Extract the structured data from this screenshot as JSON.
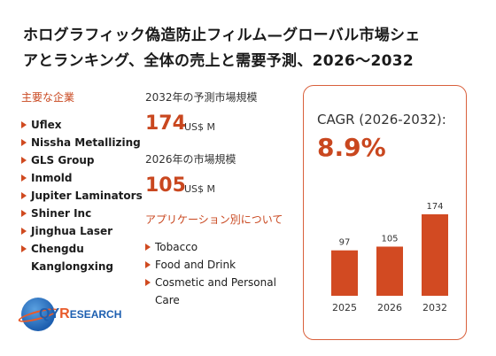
{
  "title": {
    "line1": "ホログラフィック偽造防止フィルム—グローバル市場シェ",
    "line2": "アとランキング、全体の売上と需要予測、2026〜2032"
  },
  "companies_label": "主要な企業",
  "companies": [
    "Uflex",
    "Nissha Metallizing",
    "GLS Group",
    "Inmold",
    "Jupiter Laminators",
    "Shiner Inc",
    "Jinghua Laser",
    "Chengdu Kanglongxing"
  ],
  "forecast": {
    "label_2032": "2032年の予測市場規模",
    "value_2032": "174",
    "unit_2032": "US$ M",
    "label_2026": "2026年の市場規模",
    "value_2026": "105",
    "unit_2026": "US$ M"
  },
  "applications_label": "アプリケーション別について",
  "applications": [
    "Tobacco",
    "Food and Drink",
    "Cosmetic and Personal Care"
  ],
  "cagr": {
    "label": "CAGR (2026-2032):",
    "value": "8.9%"
  },
  "logo": {
    "brand_main": "QY",
    "brand_r": "R",
    "brand_rest": "ESEARCH"
  },
  "colors": {
    "accent": "#c9471f",
    "bar": "#d24a22",
    "logo_blue": "#1d5fb0",
    "logo_orange": "#e85a2a"
  },
  "chart_data": {
    "type": "bar",
    "categories": [
      "2025",
      "2026",
      "2032"
    ],
    "values": [
      97,
      105,
      174
    ],
    "title": "",
    "xlabel": "",
    "ylabel": "",
    "ylim": [
      0,
      174
    ],
    "grid": false
  }
}
